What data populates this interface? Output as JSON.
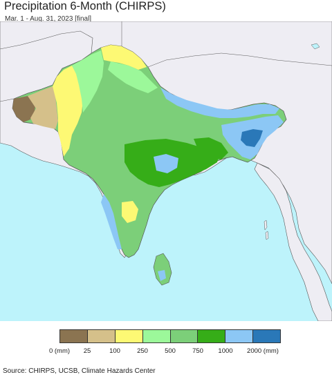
{
  "header": {
    "title": "Precipitation 6-Month (CHIRPS)",
    "subtitle": "Mar. 1 - Aug. 31, 2023 [final]"
  },
  "legend": {
    "colors": [
      "#8b7451",
      "#d5c08a",
      "#fdf974",
      "#9cf89a",
      "#7ccf79",
      "#36ad18",
      "#8cc7f5",
      "#2a78b8"
    ],
    "ticks": [
      "0 (mm)",
      "25",
      "100",
      "250",
      "500",
      "750",
      "1000",
      "2000 (mm)"
    ]
  },
  "footer": {
    "source": "Source: CHIRPS, UCSB, Climate Hazards Center"
  },
  "map_colors": {
    "ocean": "#bdf3fb",
    "land_outside": "#eeedf3",
    "border": "#444444"
  }
}
